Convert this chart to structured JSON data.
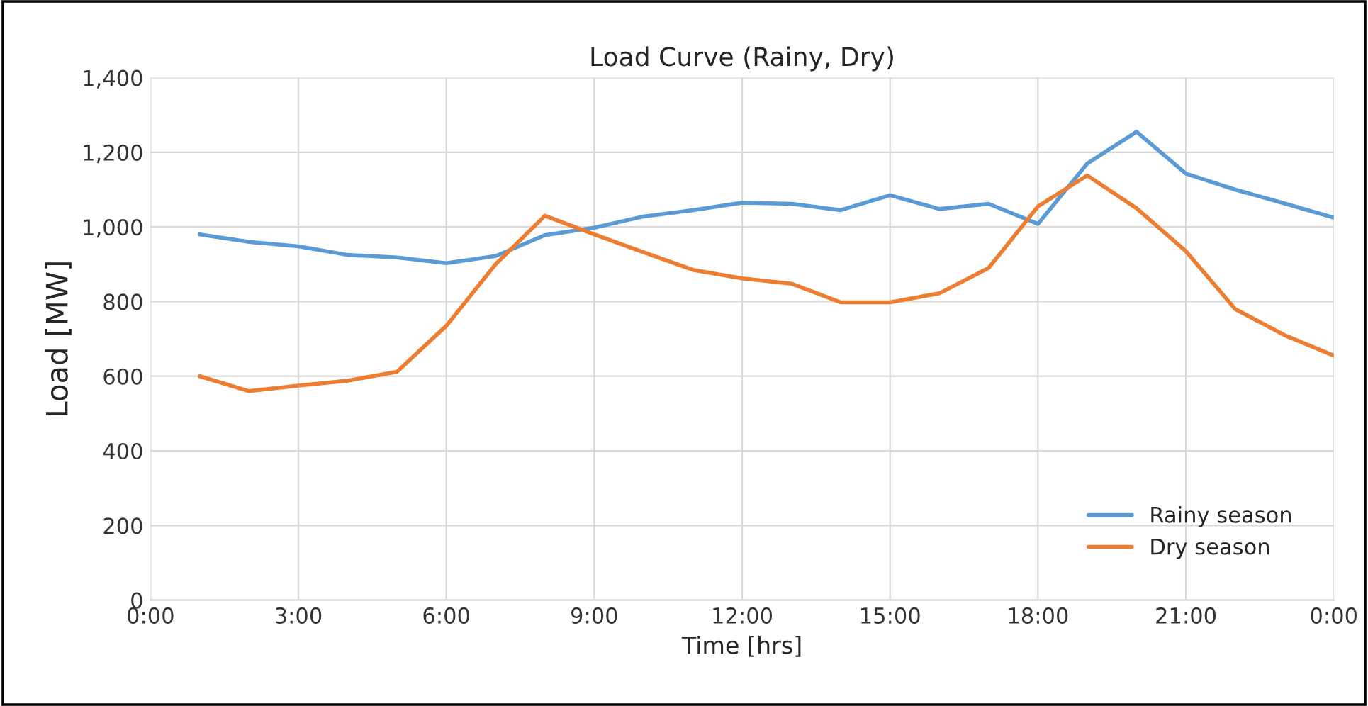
{
  "chart_data": {
    "type": "line",
    "title": "Load Curve (Rainy, Dry)",
    "xlabel": "Time [hrs]",
    "ylabel": "Load [MW]",
    "x": [
      1,
      2,
      3,
      4,
      5,
      6,
      7,
      8,
      9,
      10,
      11,
      12,
      13,
      14,
      15,
      16,
      17,
      18,
      19,
      20,
      21,
      22,
      23,
      24
    ],
    "series": [
      {
        "name": "Rainy season",
        "color": "#5b9bd5",
        "values": [
          980,
          960,
          948,
          925,
          918,
          903,
          922,
          978,
          998,
          1028,
          1045,
          1065,
          1062,
          1045,
          1085,
          1048,
          1062,
          1008,
          1170,
          1255,
          1143,
          1100,
          1063,
          1025
        ]
      },
      {
        "name": "Dry season",
        "color": "#ed7d31",
        "values": [
          600,
          560,
          575,
          588,
          612,
          735,
          900,
          1030,
          980,
          932,
          885,
          862,
          848,
          798,
          798,
          822,
          890,
          1055,
          1138,
          1050,
          935,
          780,
          710,
          655
        ]
      }
    ],
    "xlim": [
      0,
      24
    ],
    "xticks": [
      {
        "value": 0,
        "label": "0:00"
      },
      {
        "value": 3,
        "label": "3:00"
      },
      {
        "value": 6,
        "label": "6:00"
      },
      {
        "value": 9,
        "label": "9:00"
      },
      {
        "value": 12,
        "label": "12:00"
      },
      {
        "value": 15,
        "label": "15:00"
      },
      {
        "value": 18,
        "label": "18:00"
      },
      {
        "value": 21,
        "label": "21:00"
      },
      {
        "value": 24,
        "label": "0:00"
      }
    ],
    "ylim": [
      0,
      1400
    ],
    "yticks": [
      0,
      200,
      400,
      600,
      800,
      {
        "value": 1000,
        "label": "1,000"
      },
      {
        "value": 1200,
        "label": "1,200"
      },
      {
        "value": 1400,
        "label": "1,400"
      }
    ],
    "grid": true,
    "legend": "bottom right",
    "marker": "none",
    "line_style": "solid"
  }
}
